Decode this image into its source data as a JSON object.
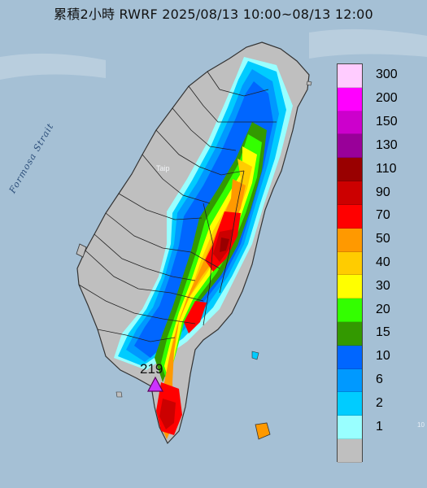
{
  "title": "累積2小時 RWRF 2025/08/13 10:00~08/13 12:00",
  "water_label": "Formosa Strait",
  "city_label": "Taip",
  "edge_label": "10",
  "peak": {
    "value": "219",
    "marker_color": "#cc33ff"
  },
  "legend": {
    "items": [
      {
        "label": "300",
        "color": "#ffccff"
      },
      {
        "label": "200",
        "color": "#ff00ff"
      },
      {
        "label": "150",
        "color": "#cc00cc"
      },
      {
        "label": "130",
        "color": "#990099"
      },
      {
        "label": "110",
        "color": "#990000"
      },
      {
        "label": "90",
        "color": "#cc0000"
      },
      {
        "label": "70",
        "color": "#ff0000"
      },
      {
        "label": "50",
        "color": "#ff9900"
      },
      {
        "label": "40",
        "color": "#ffcc00"
      },
      {
        "label": "30",
        "color": "#ffff00"
      },
      {
        "label": "20",
        "color": "#33ff00"
      },
      {
        "label": "15",
        "color": "#339900"
      },
      {
        "label": "10",
        "color": "#0066ff"
      },
      {
        "label": "6",
        "color": "#0099ff"
      },
      {
        "label": "2",
        "color": "#00ccff"
      },
      {
        "label": "1",
        "color": "#99ffff"
      },
      {
        "label": "",
        "color": "#bfbfbf"
      }
    ]
  },
  "colors": {
    "sea": "#9cb8cf",
    "land_dry": "#bfbfbf"
  }
}
